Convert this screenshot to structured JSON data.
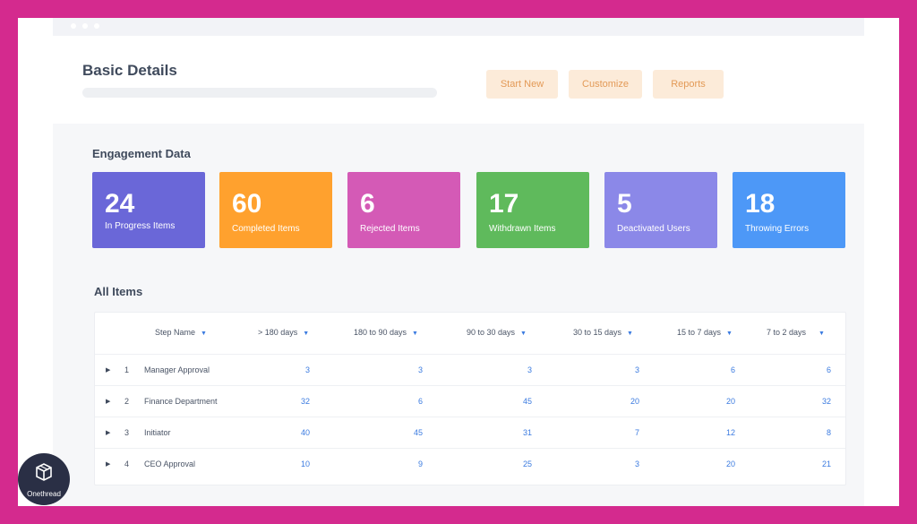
{
  "header": {
    "title": "Basic Details",
    "buttons": [
      "Start New",
      "Customize",
      "Reports"
    ]
  },
  "engagement": {
    "title": "Engagement Data",
    "cards": [
      {
        "value": "24",
        "label": "In Progress Items",
        "color": "#6a67d8"
      },
      {
        "value": "60",
        "label": "Completed Items",
        "color": "#ffa12e"
      },
      {
        "value": "6",
        "label": "Rejected Items",
        "color": "#d45ab6"
      },
      {
        "value": "17",
        "label": "Withdrawn Items",
        "color": "#5fba5c"
      },
      {
        "value": "5",
        "label": "Deactivated Users",
        "color": "#8b88e8"
      },
      {
        "value": "18",
        "label": "Throwing Errors",
        "color": "#4d98f7"
      }
    ]
  },
  "all_items": {
    "title": "All Items",
    "columns": [
      "Step Name",
      "> 180 days",
      "180 to 90 days",
      "90 to 30 days",
      "30 to 15 days",
      "15 to 7 days",
      "7 to 2 days"
    ],
    "rows": [
      {
        "index": "1",
        "name": "Manager Approval",
        "values": [
          "3",
          "3",
          "3",
          "3",
          "6",
          "6"
        ]
      },
      {
        "index": "2",
        "name": "Finance Department",
        "values": [
          "32",
          "6",
          "45",
          "20",
          "20",
          "32"
        ]
      },
      {
        "index": "3",
        "name": "Initiator",
        "values": [
          "40",
          "45",
          "31",
          "7",
          "12",
          "8"
        ]
      },
      {
        "index": "4",
        "name": "CEO Approval",
        "values": [
          "10",
          "9",
          "25",
          "3",
          "20",
          "21"
        ]
      }
    ]
  },
  "logo": {
    "text": "Onethread"
  },
  "colors": {
    "accent": "#3b7be0",
    "border": "#d42a8e",
    "button_bg": "#fcebd9",
    "button_text": "#e39a57"
  }
}
